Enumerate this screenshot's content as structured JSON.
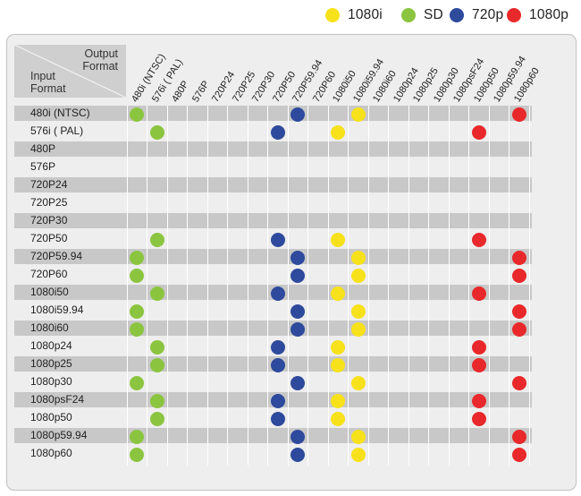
{
  "legend": [
    {
      "label": "1080i",
      "color": "#f7e11b"
    },
    {
      "label": "SD",
      "color": "#8bc53f"
    },
    {
      "label": "720p",
      "color": "#2e4a9c"
    },
    {
      "label": "1080p",
      "color": "#e8282a"
    }
  ],
  "header": {
    "output_label_line1": "Output",
    "output_label_line2": "Format",
    "input_label_line1": "Input",
    "input_label_line2": "Format"
  },
  "chart_data": {
    "type": "table",
    "columns": [
      "480i (NTSC)",
      "576i ( PAL)",
      "480P",
      "576P",
      "720P24",
      "720P25",
      "720P30",
      "720P50",
      "720P59.94",
      "720P60",
      "1080i50",
      "1080i59.94",
      "1080i60",
      "1080p24",
      "1080p25",
      "1080p30",
      "1080psF24",
      "1080p50",
      "1080p59.94",
      "1080p60"
    ],
    "rows": [
      "480i (NTSC)",
      "576i ( PAL)",
      "480P",
      "576P",
      "720P24",
      "720P25",
      "720P30",
      "720P50",
      "720P59.94",
      "720P60",
      "1080i50",
      "1080i59.94",
      "1080i60",
      "1080p24",
      "1080p25",
      "1080p30",
      "1080psF24",
      "1080p50",
      "1080p59.94",
      "1080p60"
    ],
    "color_key": {
      "i": "1080i",
      "s": "SD",
      "7": "720p",
      "p": "1080p"
    },
    "cells": [
      [
        {
          "col": 0,
          "type": "SD"
        },
        {
          "col": 8,
          "type": "720p"
        },
        {
          "col": 11,
          "type": "1080i"
        },
        {
          "col": 19,
          "type": "1080p"
        }
      ],
      [
        {
          "col": 1,
          "type": "SD"
        },
        {
          "col": 7,
          "type": "720p"
        },
        {
          "col": 10,
          "type": "1080i"
        },
        {
          "col": 17,
          "type": "1080p"
        }
      ],
      [],
      [],
      [],
      [],
      [],
      [
        {
          "col": 1,
          "type": "SD"
        },
        {
          "col": 7,
          "type": "720p"
        },
        {
          "col": 10,
          "type": "1080i"
        },
        {
          "col": 17,
          "type": "1080p"
        }
      ],
      [
        {
          "col": 0,
          "type": "SD"
        },
        {
          "col": 8,
          "type": "720p"
        },
        {
          "col": 11,
          "type": "1080i"
        },
        {
          "col": 19,
          "type": "1080p"
        }
      ],
      [
        {
          "col": 0,
          "type": "SD"
        },
        {
          "col": 8,
          "type": "720p"
        },
        {
          "col": 11,
          "type": "1080i"
        },
        {
          "col": 19,
          "type": "1080p"
        }
      ],
      [
        {
          "col": 1,
          "type": "SD"
        },
        {
          "col": 7,
          "type": "720p"
        },
        {
          "col": 10,
          "type": "1080i"
        },
        {
          "col": 17,
          "type": "1080p"
        }
      ],
      [
        {
          "col": 0,
          "type": "SD"
        },
        {
          "col": 8,
          "type": "720p"
        },
        {
          "col": 11,
          "type": "1080i"
        },
        {
          "col": 19,
          "type": "1080p"
        }
      ],
      [
        {
          "col": 0,
          "type": "SD"
        },
        {
          "col": 8,
          "type": "720p"
        },
        {
          "col": 11,
          "type": "1080i"
        },
        {
          "col": 19,
          "type": "1080p"
        }
      ],
      [
        {
          "col": 1,
          "type": "SD"
        },
        {
          "col": 7,
          "type": "720p"
        },
        {
          "col": 10,
          "type": "1080i"
        },
        {
          "col": 17,
          "type": "1080p"
        }
      ],
      [
        {
          "col": 1,
          "type": "SD"
        },
        {
          "col": 7,
          "type": "720p"
        },
        {
          "col": 10,
          "type": "1080i"
        },
        {
          "col": 17,
          "type": "1080p"
        }
      ],
      [
        {
          "col": 0,
          "type": "SD"
        },
        {
          "col": 8,
          "type": "720p"
        },
        {
          "col": 11,
          "type": "1080i"
        },
        {
          "col": 19,
          "type": "1080p"
        }
      ],
      [
        {
          "col": 1,
          "type": "SD"
        },
        {
          "col": 7,
          "type": "720p"
        },
        {
          "col": 10,
          "type": "1080i"
        },
        {
          "col": 17,
          "type": "1080p"
        }
      ],
      [
        {
          "col": 1,
          "type": "SD"
        },
        {
          "col": 7,
          "type": "720p"
        },
        {
          "col": 10,
          "type": "1080i"
        },
        {
          "col": 17,
          "type": "1080p"
        }
      ],
      [
        {
          "col": 0,
          "type": "SD"
        },
        {
          "col": 8,
          "type": "720p"
        },
        {
          "col": 11,
          "type": "1080i"
        },
        {
          "col": 19,
          "type": "1080p"
        }
      ],
      [
        {
          "col": 0,
          "type": "SD"
        },
        {
          "col": 8,
          "type": "720p"
        },
        {
          "col": 11,
          "type": "1080i"
        },
        {
          "col": 19,
          "type": "1080p"
        }
      ]
    ]
  }
}
